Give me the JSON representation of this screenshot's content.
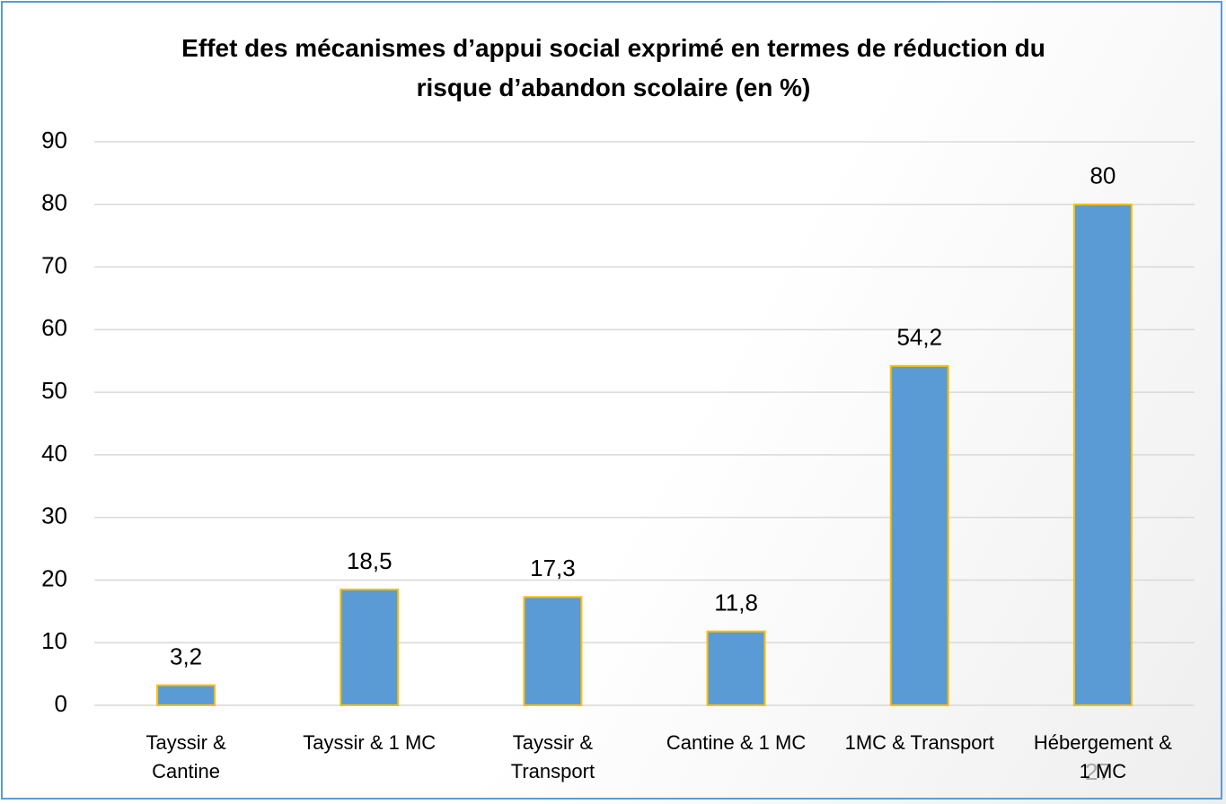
{
  "chart_data": {
    "type": "bar",
    "title": "Effet des mécanismes d’appui social exprimé en termes de réduction du risque d’abandon scolaire (en %)",
    "categories": [
      "Tayssir & Cantine",
      "Tayssir & 1 MC",
      "Tayssir & Transport",
      "Cantine & 1 MC",
      "1MC & Transport",
      "Hébergement & 1 MC"
    ],
    "values": [
      3.2,
      18.5,
      17.3,
      11.8,
      54.2,
      80
    ],
    "value_labels": [
      "3,2",
      "18,5",
      "17,3",
      "11,8",
      "54,2",
      "80"
    ],
    "color": "#5b9bd5",
    "edge_color": "#ffc000",
    "ylim": [
      0,
      90
    ],
    "yticks": [
      0,
      10,
      20,
      30,
      40,
      50,
      60,
      70,
      80,
      90
    ],
    "grid": true
  },
  "slide_number": "27"
}
